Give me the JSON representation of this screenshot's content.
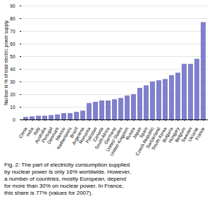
{
  "chart_data": {
    "type": "bar",
    "categories": [
      "China",
      "India",
      "Italy",
      "Australia",
      "Portugal",
      "Denmark",
      "Mexico",
      "Netherlands",
      "Brazil",
      "Argentina",
      "Romania",
      "Pakistan",
      "Canada",
      "South Africa",
      "Germany",
      "United States",
      "United Kingdom",
      "Russia",
      "Japan",
      "Spain",
      "Czech Republic",
      "Switzerland",
      "South Korea",
      "Bulgaria",
      "Hungary",
      "Belgium",
      "Sweden",
      "Ukraine",
      "France"
    ],
    "values": [
      2,
      2.5,
      3,
      3,
      3.5,
      4,
      5,
      5,
      6,
      7,
      13,
      14,
      15,
      15,
      16,
      17,
      19,
      20,
      25,
      27,
      30,
      31,
      32,
      35,
      37,
      44,
      44,
      48,
      77
    ],
    "color": "#8080cc",
    "ylabel": "Nuclear in % of total electric power supply",
    "ylim": [
      0,
      90
    ],
    "yticks": [
      0,
      10,
      20,
      30,
      40,
      50,
      60,
      70,
      80,
      90
    ],
    "grid": true,
    "caption": "Fig. 2: The part of electricity consumption supplied\nby nuclear power is only 16% worldwide. However,\na number of countries, mostly European, depend\nfor more than 30% on nuclear power. In France,\nthis share is 77% (values for 2007)."
  }
}
